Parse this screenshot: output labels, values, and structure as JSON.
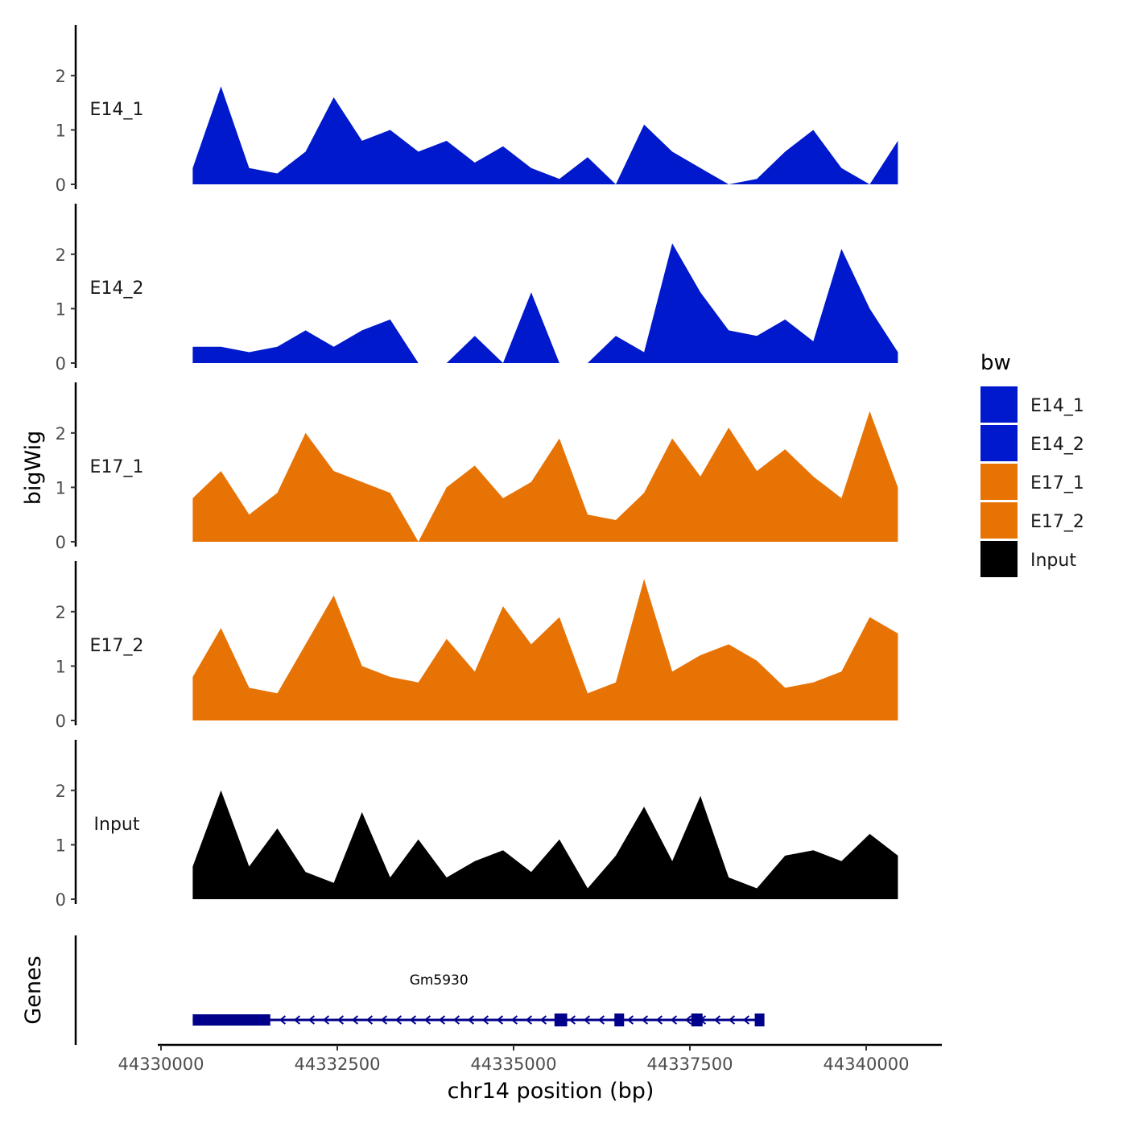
{
  "chart_data": {
    "type": "area",
    "x": [
      44330450,
      44330850,
      44331250,
      44331650,
      44332050,
      44332450,
      44332850,
      44333250,
      44333650,
      44334050,
      44334450,
      44334850,
      44335250,
      44335650,
      44336050,
      44336450,
      44336850,
      44337250,
      44337650,
      44338050,
      44338450,
      44338850,
      44339250,
      44339650,
      44340050,
      44340450
    ],
    "xlabel": "chr14 position (bp)",
    "ylabel": "bigWig",
    "x_tick_labels": [
      "44330000",
      "44332500",
      "44335000",
      "44337500",
      "44340000"
    ],
    "x_ticks": [
      44330000,
      44332500,
      44335000,
      44337500,
      44340000
    ],
    "xlim": [
      44330000,
      44341100
    ],
    "ylim": [
      0,
      2.9
    ],
    "y_tick_labels": [
      "0",
      "1",
      "2"
    ],
    "y_ticks": [
      0,
      1,
      2
    ],
    "series": [
      {
        "name": "E14_1",
        "label": "E14_1",
        "color": "#0019cc",
        "values": [
          0.3,
          1.8,
          0.3,
          0.2,
          0.6,
          1.6,
          0.8,
          1.0,
          0.6,
          0.8,
          0.4,
          0.7,
          0.3,
          0.1,
          0.5,
          0.0,
          1.1,
          0.6,
          0.3,
          0.0,
          0.1,
          0.6,
          1.0,
          0.3,
          0.0,
          0.8
        ]
      },
      {
        "name": "E14_2",
        "label": "E14_2",
        "color": "#0019cc",
        "values": [
          0.3,
          0.3,
          0.2,
          0.3,
          0.6,
          0.3,
          0.6,
          0.8,
          0.0,
          0.0,
          0.5,
          0.0,
          1.3,
          0.0,
          0.0,
          0.5,
          0.2,
          2.2,
          1.3,
          0.6,
          0.5,
          0.8,
          0.4,
          2.1,
          1.0,
          0.2
        ]
      },
      {
        "name": "E17_1",
        "label": "E17_1",
        "color": "#e87305",
        "values": [
          0.8,
          1.3,
          0.5,
          0.9,
          2.0,
          1.3,
          1.1,
          0.9,
          0.0,
          1.0,
          1.4,
          0.8,
          1.1,
          1.9,
          0.5,
          0.4,
          0.9,
          1.9,
          1.2,
          2.1,
          1.3,
          1.7,
          1.2,
          0.8,
          2.4,
          1.0
        ]
      },
      {
        "name": "E17_2",
        "label": "E17_2",
        "color": "#e87305",
        "values": [
          0.8,
          1.7,
          0.6,
          0.5,
          1.4,
          2.3,
          1.0,
          0.8,
          0.7,
          1.5,
          0.9,
          2.1,
          1.4,
          1.9,
          0.5,
          0.7,
          2.6,
          0.9,
          1.2,
          1.4,
          1.1,
          0.6,
          0.7,
          0.9,
          1.9,
          1.6
        ]
      },
      {
        "name": "Input",
        "label": "Input",
        "color": "#000000",
        "values": [
          0.6,
          2.0,
          0.6,
          1.3,
          0.5,
          0.3,
          1.6,
          0.4,
          1.1,
          0.4,
          0.7,
          0.9,
          0.5,
          1.1,
          0.2,
          0.8,
          1.7,
          0.7,
          1.9,
          0.4,
          0.2,
          0.8,
          0.9,
          0.7,
          1.2,
          0.8
        ]
      }
    ],
    "genes_track": {
      "ylabel": "Genes",
      "gene_name": "Gm5930",
      "gene_start": 44330450,
      "gene_end": 44338550,
      "strand": "-",
      "exons": [
        [
          44330450,
          44331550
        ],
        [
          44335580,
          44335760
        ],
        [
          44336430,
          44336560
        ],
        [
          44337520,
          44337680
        ],
        [
          44338420,
          44338550
        ]
      ]
    },
    "legend": {
      "title": "bw",
      "position": "right",
      "entries": [
        {
          "label": "E14_1",
          "color": "#0019cc"
        },
        {
          "label": "E14_2",
          "color": "#0019cc"
        },
        {
          "label": "E17_1",
          "color": "#e87305"
        },
        {
          "label": "E17_2",
          "color": "#e87305"
        },
        {
          "label": "Input",
          "color": "#000000"
        }
      ]
    },
    "gene_color": "#00008b",
    "grid": false
  }
}
